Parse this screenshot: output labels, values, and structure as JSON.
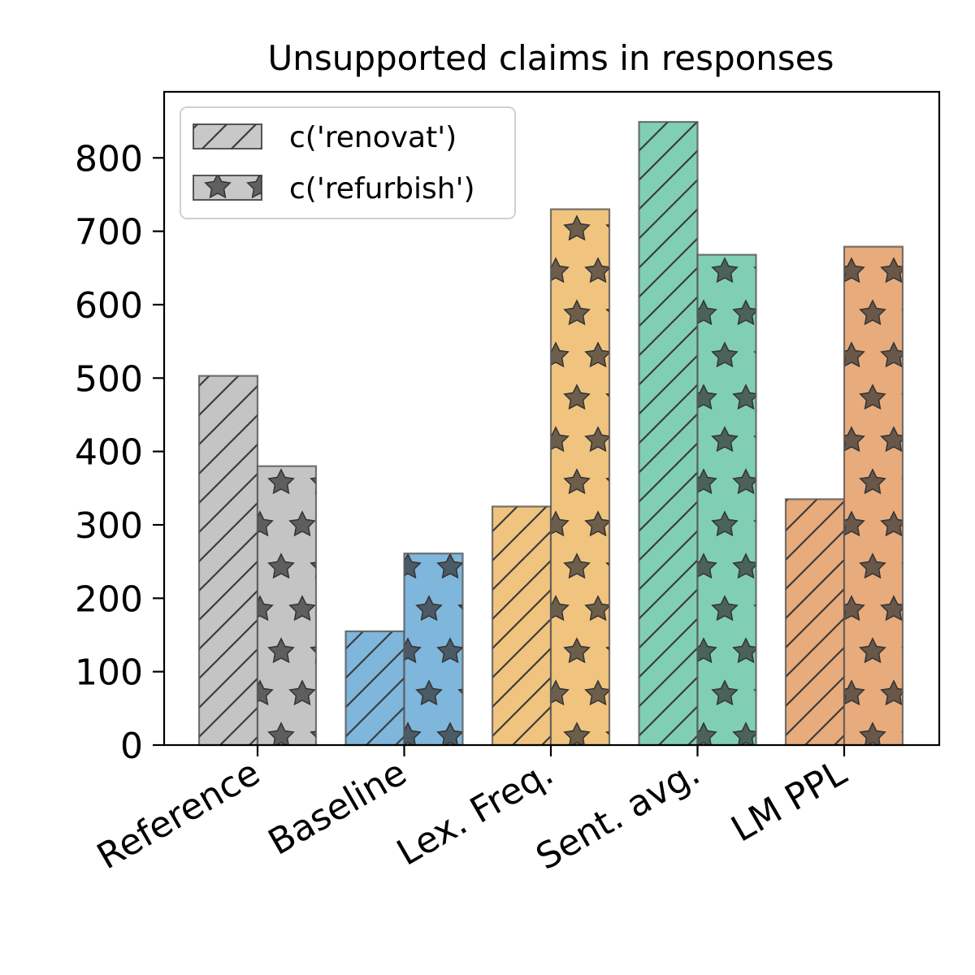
{
  "chart_data": {
    "type": "bar",
    "title": "Unsupported claims in responses",
    "xlabel": "",
    "ylabel": "",
    "categories": [
      "Reference",
      "Baseline",
      "Lex. Freq.",
      "Sent. avg.",
      "LM PPL"
    ],
    "category_colors": [
      "#c4c4c4",
      "#7fb6dc",
      "#f0c47e",
      "#80cfb5",
      "#e8ab7c"
    ],
    "series": [
      {
        "name": "c('renovat')",
        "pattern": "hatch",
        "values": [
          503,
          155,
          325,
          849,
          335
        ]
      },
      {
        "name": "c('refurbish')",
        "pattern": "star",
        "values": [
          380,
          261,
          730,
          668,
          679
        ]
      }
    ],
    "ylim": [
      0,
      890
    ],
    "yticks": [
      0,
      100,
      200,
      300,
      400,
      500,
      600,
      700,
      800
    ],
    "grid": false,
    "legend_position": "top-left"
  }
}
